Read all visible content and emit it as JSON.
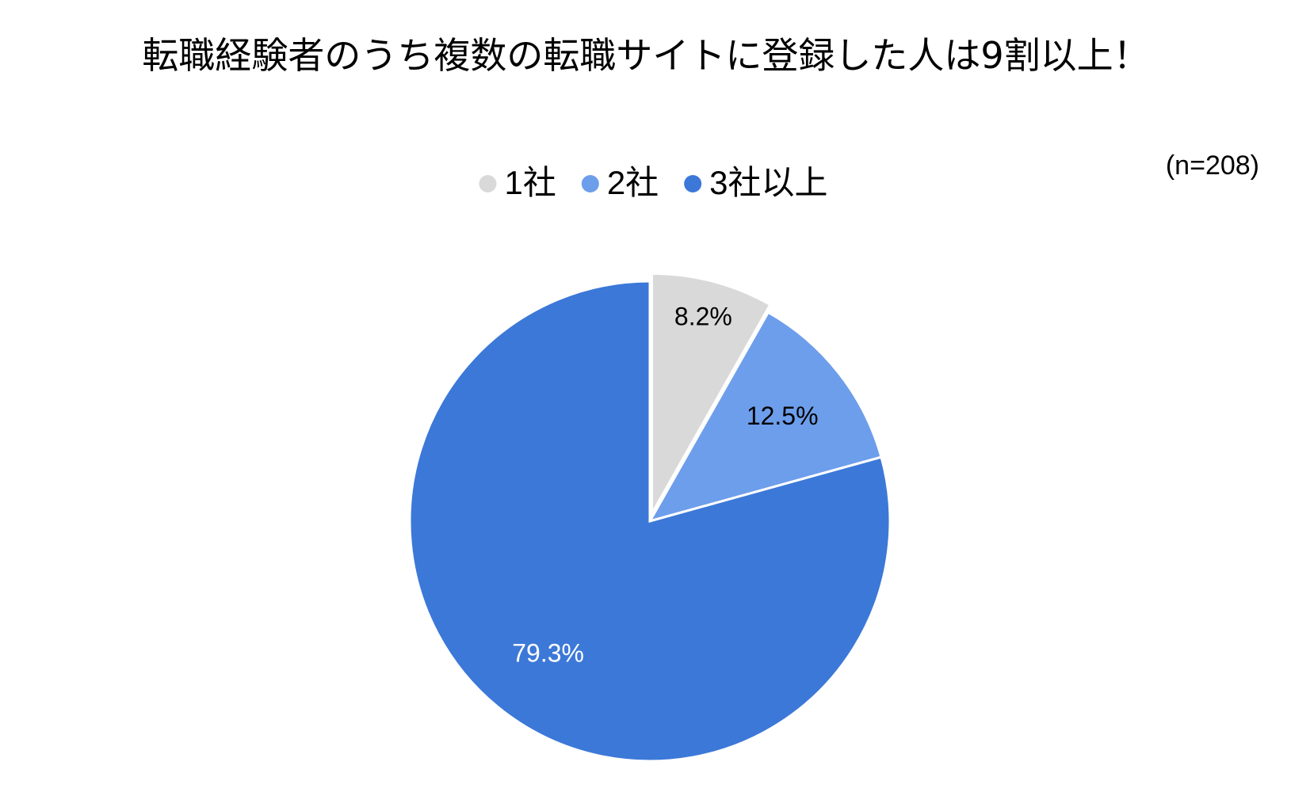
{
  "chart_data": {
    "type": "pie",
    "title": "転職経験者のうち複数の転職サイトに登録した人は9割以上！",
    "annotation": "(n=208)",
    "categories": [
      "1社",
      "2社",
      "3社以上"
    ],
    "values": [
      8.2,
      12.5,
      79.3
    ],
    "value_labels": [
      "8.2%",
      "12.5%",
      "79.3%"
    ],
    "colors": [
      "#d9d9d9",
      "#6d9eeb",
      "#3c78d8"
    ],
    "explode": [
      true,
      false,
      false
    ],
    "legend": "top"
  }
}
